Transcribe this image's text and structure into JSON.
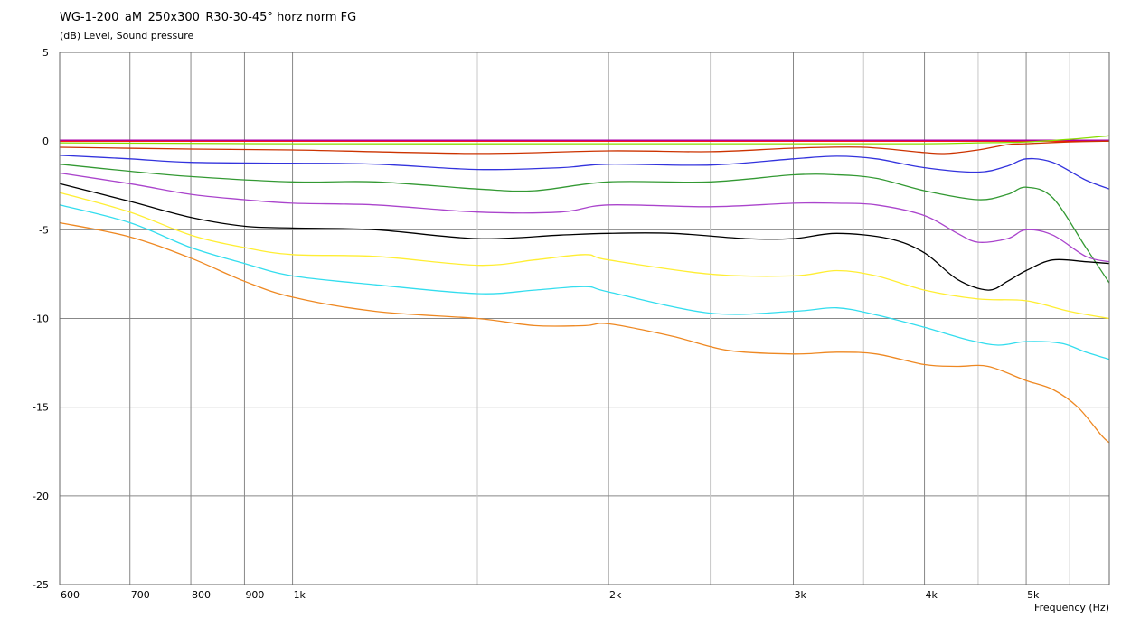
{
  "chart_data": {
    "type": "line",
    "title": "WG-1-200_aM_250x300_R30-30-45° horz norm FG",
    "ylabel": "(dB)  Level, Sound pressure",
    "xlabel": "Frequency  (Hz)",
    "x_scale": "log",
    "xlim": [
      600,
      6000
    ],
    "ylim": [
      -25,
      5
    ],
    "y_ticks": [
      5,
      0,
      -5,
      -10,
      -15,
      -20,
      -25
    ],
    "x_ticks": [
      {
        "value": 600,
        "label": "600"
      },
      {
        "value": 700,
        "label": "700"
      },
      {
        "value": 800,
        "label": "800"
      },
      {
        "value": 900,
        "label": "900"
      },
      {
        "value": 1000,
        "label": "1k"
      },
      {
        "value": 2000,
        "label": "2k"
      },
      {
        "value": 3000,
        "label": "3k"
      },
      {
        "value": 4000,
        "label": "4k"
      },
      {
        "value": 5000,
        "label": "5k"
      }
    ],
    "minor_x": [
      1500,
      2500,
      3500,
      4500,
      5500
    ],
    "grid": true,
    "series": [
      {
        "color": "#ff0000",
        "x": [
          600,
          1000,
          2000,
          3000,
          4000,
          5000,
          6000
        ],
        "y": [
          0,
          0,
          0,
          0,
          0,
          0,
          0
        ]
      },
      {
        "color": "#aa00aa",
        "x": [
          600,
          1000,
          2000,
          3000,
          4000,
          5000,
          6000
        ],
        "y": [
          0.05,
          0.05,
          0.05,
          0.05,
          0.05,
          0.05,
          0.05
        ]
      },
      {
        "color": "#88dd00",
        "x": [
          600,
          1000,
          2000,
          3000,
          4000,
          4500,
          5000,
          5500,
          6000
        ],
        "y": [
          -0.1,
          -0.15,
          -0.15,
          -0.15,
          -0.15,
          -0.1,
          -0.05,
          0.1,
          0.3
        ]
      },
      {
        "color": "#cc3300",
        "x": [
          600,
          800,
          1000,
          1500,
          2000,
          2500,
          3000,
          3500,
          4000,
          4200,
          4500,
          4800,
          5000,
          5500,
          6000
        ],
        "y": [
          -0.35,
          -0.45,
          -0.5,
          -0.7,
          -0.55,
          -0.6,
          -0.4,
          -0.35,
          -0.65,
          -0.7,
          -0.5,
          -0.2,
          -0.15,
          -0.05,
          0
        ]
      },
      {
        "color": "#3333dd",
        "x": [
          600,
          700,
          800,
          1000,
          1200,
          1500,
          1800,
          2000,
          2500,
          3000,
          3300,
          3600,
          4000,
          4500,
          4800,
          5000,
          5300,
          5700,
          6000
        ],
        "y": [
          -0.8,
          -1.0,
          -1.2,
          -1.25,
          -1.3,
          -1.6,
          -1.5,
          -1.3,
          -1.35,
          -1.0,
          -0.85,
          -1.0,
          -1.5,
          -1.75,
          -1.4,
          -1.0,
          -1.2,
          -2.2,
          -2.7
        ]
      },
      {
        "color": "#339933",
        "x": [
          600,
          700,
          800,
          1000,
          1200,
          1500,
          1700,
          2000,
          2500,
          3000,
          3300,
          3600,
          4000,
          4500,
          4800,
          5000,
          5300,
          5700,
          6000
        ],
        "y": [
          -1.3,
          -1.7,
          -2.0,
          -2.3,
          -2.3,
          -2.7,
          -2.8,
          -2.3,
          -2.3,
          -1.9,
          -1.9,
          -2.1,
          -2.8,
          -3.3,
          -3.0,
          -2.6,
          -3.2,
          -6.0,
          -8.0
        ]
      },
      {
        "color": "#aa44cc",
        "x": [
          600,
          700,
          800,
          900,
          1000,
          1200,
          1500,
          1800,
          2000,
          2500,
          3000,
          3300,
          3600,
          4000,
          4300,
          4500,
          4800,
          5000,
          5300,
          5700,
          6000
        ],
        "y": [
          -1.8,
          -2.4,
          -3.0,
          -3.3,
          -3.5,
          -3.6,
          -4.0,
          -4.0,
          -3.6,
          -3.7,
          -3.5,
          -3.5,
          -3.6,
          -4.2,
          -5.2,
          -5.7,
          -5.5,
          -5.0,
          -5.3,
          -6.5,
          -6.8
        ]
      },
      {
        "color": "#000000",
        "x": [
          600,
          700,
          800,
          900,
          1000,
          1200,
          1500,
          1800,
          2000,
          2300,
          2700,
          3000,
          3300,
          3700,
          4000,
          4300,
          4600,
          4800,
          5000,
          5300,
          5700,
          6000
        ],
        "y": [
          -2.4,
          -3.4,
          -4.3,
          -4.8,
          -4.9,
          -5.0,
          -5.5,
          -5.3,
          -5.2,
          -5.2,
          -5.5,
          -5.5,
          -5.2,
          -5.5,
          -6.3,
          -7.8,
          -8.4,
          -7.9,
          -7.3,
          -6.7,
          -6.8,
          -6.9
        ]
      },
      {
        "color": "#ffee33",
        "x": [
          600,
          700,
          800,
          900,
          1000,
          1200,
          1500,
          1700,
          1900,
          2000,
          2500,
          3000,
          3300,
          3600,
          4000,
          4500,
          5000,
          5500,
          6000
        ],
        "y": [
          -2.9,
          -4.0,
          -5.3,
          -6.0,
          -6.4,
          -6.5,
          -7.0,
          -6.7,
          -6.4,
          -6.7,
          -7.5,
          -7.6,
          -7.3,
          -7.6,
          -8.4,
          -8.9,
          -9.0,
          -9.6,
          -10.0
        ]
      },
      {
        "color": "#33ddee",
        "x": [
          600,
          700,
          800,
          900,
          1000,
          1200,
          1500,
          1700,
          1900,
          2000,
          2500,
          3000,
          3300,
          3600,
          4000,
          4400,
          4700,
          5000,
          5400,
          5700,
          6000
        ],
        "y": [
          -3.6,
          -4.6,
          -6.0,
          -6.9,
          -7.6,
          -8.1,
          -8.6,
          -8.4,
          -8.2,
          -8.5,
          -9.7,
          -9.6,
          -9.4,
          -9.8,
          -10.5,
          -11.2,
          -11.5,
          -11.3,
          -11.4,
          -11.9,
          -12.3
        ]
      },
      {
        "color": "#ee8822",
        "x": [
          600,
          700,
          800,
          900,
          1000,
          1200,
          1500,
          1700,
          1900,
          2000,
          2300,
          2600,
          3000,
          3300,
          3600,
          4000,
          4300,
          4600,
          5000,
          5300,
          5600,
          5900,
          6000
        ],
        "y": [
          -4.6,
          -5.4,
          -6.6,
          -7.9,
          -8.8,
          -9.6,
          -10.0,
          -10.4,
          -10.4,
          -10.3,
          -11.0,
          -11.8,
          -12.0,
          -11.9,
          -12.0,
          -12.6,
          -12.7,
          -12.7,
          -13.5,
          -14.0,
          -15.0,
          -16.6,
          -17.0
        ]
      }
    ]
  }
}
